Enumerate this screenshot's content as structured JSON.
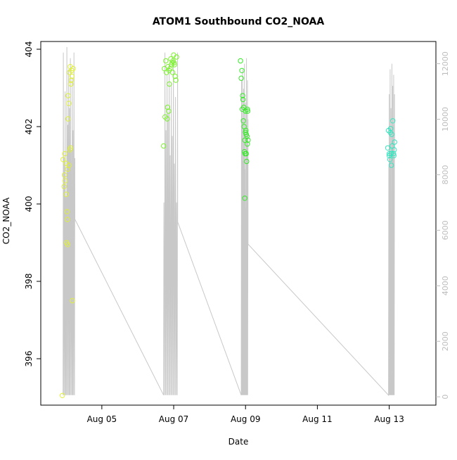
{
  "chart_data": {
    "type": "scatter",
    "title": "ATOM1 Southbound CO2_NOAA",
    "xlabel": "Date",
    "ylabel": "CO2_NOAA",
    "x_ticks": [
      "Aug 05",
      "Aug 07",
      "Aug 09",
      "Aug 11",
      "Aug 13"
    ],
    "x_tick_values": [
      5,
      7,
      9,
      11,
      13
    ],
    "xlim": [
      3.3,
      14.3
    ],
    "y_ticks": [
      396,
      398,
      400,
      402,
      404
    ],
    "ylim": [
      394.8,
      404.2
    ],
    "y2_ticks": [
      0,
      2000,
      4000,
      6000,
      8000,
      10000,
      12000
    ],
    "y2lim": [
      -300,
      12800
    ],
    "grid": false,
    "legend": "none",
    "colors": {
      "g1": "#e0f03a",
      "g2": "#7cf22f",
      "g3": "#34ea26",
      "g4": "#35e6c0",
      "altitude_line": "#c8c8c8"
    },
    "series": [
      {
        "color_key": "g1",
        "points": [
          [
            3.9,
            395.05
          ],
          [
            3.92,
            401.15
          ],
          [
            3.95,
            400.45
          ],
          [
            3.96,
            400.75
          ],
          [
            3.97,
            401.3
          ],
          [
            3.98,
            400.6
          ],
          [
            4.0,
            401.05
          ],
          [
            4.01,
            400.25
          ],
          [
            4.03,
            399.8
          ],
          [
            4.04,
            399.6
          ],
          [
            4.05,
            400.9
          ],
          [
            4.02,
            399.0
          ],
          [
            4.06,
            402.2
          ],
          [
            4.06,
            402.8
          ],
          [
            4.08,
            402.6
          ],
          [
            4.1,
            403.4
          ],
          [
            4.12,
            403.55
          ],
          [
            4.14,
            403.1
          ],
          [
            4.15,
            403.2
          ],
          [
            4.16,
            403.45
          ],
          [
            4.17,
            403.3
          ],
          [
            4.2,
            403.5
          ],
          [
            4.13,
            401.45
          ],
          [
            4.18,
            397.5
          ],
          [
            4.05,
            398.95
          ],
          [
            4.08,
            401.0
          ],
          [
            4.11,
            401.4
          ]
        ]
      },
      {
        "color_key": "g2",
        "points": [
          [
            6.72,
            401.5
          ],
          [
            6.74,
            403.5
          ],
          [
            6.76,
            402.25
          ],
          [
            6.78,
            403.7
          ],
          [
            6.8,
            403.4
          ],
          [
            6.82,
            402.2
          ],
          [
            6.84,
            403.55
          ],
          [
            6.86,
            402.4
          ],
          [
            6.88,
            403.1
          ],
          [
            6.9,
            403.5
          ],
          [
            6.92,
            403.75
          ],
          [
            6.94,
            403.6
          ],
          [
            6.96,
            403.65
          ],
          [
            6.98,
            403.7
          ],
          [
            7.0,
            403.85
          ],
          [
            7.02,
            403.6
          ],
          [
            7.04,
            403.3
          ],
          [
            7.06,
            403.2
          ],
          [
            7.08,
            403.8
          ],
          [
            6.83,
            402.5
          ],
          [
            6.97,
            403.4
          ],
          [
            7.01,
            403.65
          ],
          [
            6.87,
            403.45
          ]
        ]
      },
      {
        "color_key": "g3",
        "points": [
          [
            8.86,
            403.7
          ],
          [
            8.88,
            403.25
          ],
          [
            8.9,
            403.45
          ],
          [
            8.92,
            402.8
          ],
          [
            8.93,
            402.7
          ],
          [
            8.94,
            402.15
          ],
          [
            8.95,
            402.5
          ],
          [
            8.96,
            402.0
          ],
          [
            8.97,
            401.35
          ],
          [
            8.98,
            401.65
          ],
          [
            8.99,
            401.3
          ],
          [
            9.0,
            402.4
          ],
          [
            9.01,
            401.9
          ],
          [
            9.02,
            401.8
          ],
          [
            9.03,
            401.1
          ],
          [
            9.04,
            401.75
          ],
          [
            9.05,
            402.45
          ],
          [
            9.06,
            402.4
          ],
          [
            9.07,
            401.65
          ],
          [
            8.98,
            400.15
          ],
          [
            9.02,
            401.3
          ],
          [
            8.91,
            402.45
          ],
          [
            9.0,
            401.85
          ],
          [
            9.05,
            401.55
          ]
        ]
      },
      {
        "color_key": "g4",
        "points": [
          [
            12.96,
            401.45
          ],
          [
            12.98,
            401.9
          ],
          [
            13.0,
            401.25
          ],
          [
            13.02,
            401.15
          ],
          [
            13.03,
            401.85
          ],
          [
            13.04,
            401.95
          ],
          [
            13.05,
            401.3
          ],
          [
            13.06,
            401.0
          ],
          [
            13.08,
            401.5
          ],
          [
            13.1,
            402.15
          ],
          [
            13.12,
            401.3
          ],
          [
            13.14,
            401.4
          ],
          [
            13.15,
            401.6
          ],
          [
            13.0,
            401.3
          ],
          [
            13.13,
            401.25
          ],
          [
            13.07,
            401.8
          ]
        ]
      }
    ]
  }
}
